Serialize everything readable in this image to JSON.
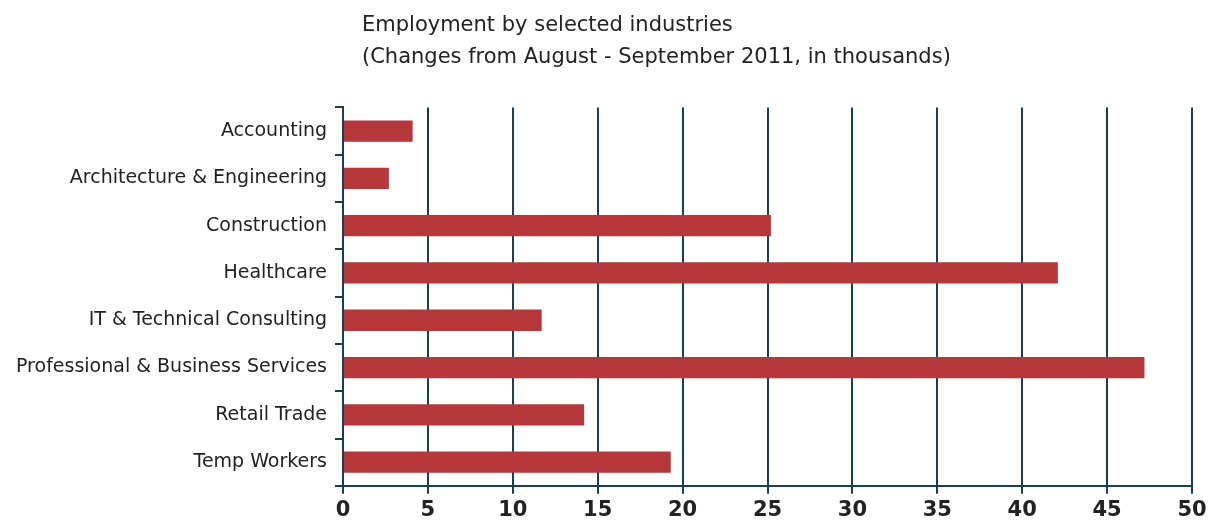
{
  "chart_data": {
    "type": "bar",
    "orientation": "horizontal",
    "title": "Employment by selected industries",
    "subtitle": "(Changes from August - September 2011, in thousands)",
    "categories": [
      "Accounting",
      "Architecture & Engineering",
      "Construction",
      "Healthcare",
      "IT & Technical Consulting",
      "Professional & Business Services",
      "Retail Trade",
      "Temp Workers"
    ],
    "values": [
      4.1,
      2.7,
      25.2,
      42.1,
      11.7,
      47.2,
      14.2,
      19.3
    ],
    "color": "#b5373a",
    "xlim": [
      0,
      50
    ],
    "xticks": [
      0,
      5,
      10,
      15,
      20,
      25,
      30,
      35,
      40,
      45,
      50
    ],
    "grid": "x",
    "legend": false
  }
}
